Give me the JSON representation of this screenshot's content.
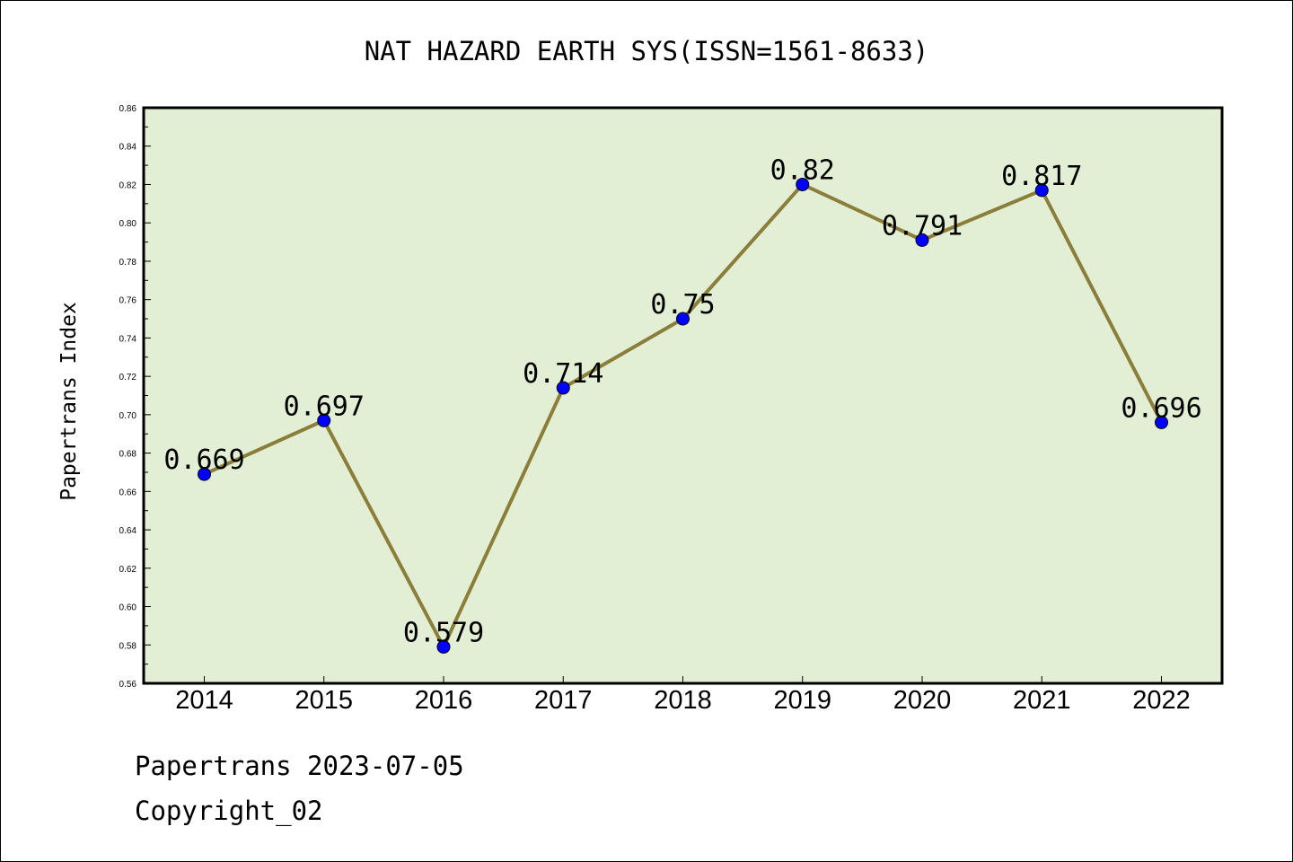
{
  "colors": {
    "plot_background": "#e2efd5",
    "line": "#8b7d3a",
    "marker": "#0000ff",
    "axis": "#000000"
  },
  "chart_data": {
    "type": "line",
    "title": "NAT HAZARD EARTH SYS(ISSN=1561-8633)",
    "xlabel": "",
    "ylabel": "Papertrans Index",
    "categories": [
      "2014",
      "2015",
      "2016",
      "2017",
      "2018",
      "2019",
      "2020",
      "2021",
      "2022"
    ],
    "series": [
      {
        "values": [
          0.669,
          0.697,
          0.579,
          0.714,
          0.75,
          0.82,
          0.791,
          0.817,
          0.696
        ],
        "labels": [
          "0.669",
          "0.697",
          "0.579",
          "0.714",
          "0.75",
          "0.82",
          "0.791",
          "0.817",
          "0.696"
        ]
      }
    ],
    "ylim": [
      0.56,
      0.86
    ],
    "yticks": [
      "0.56",
      "0.58",
      "0.60",
      "0.62",
      "0.64",
      "0.66",
      "0.68",
      "0.70",
      "0.72",
      "0.74",
      "0.76",
      "0.78",
      "0.80",
      "0.82",
      "0.84",
      "0.86"
    ],
    "grid": false,
    "legend": "none"
  },
  "footer": {
    "line1": "Papertrans 2023-07-05",
    "line2": "Copyright_02"
  }
}
